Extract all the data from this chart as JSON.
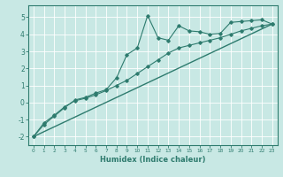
{
  "xlabel": "Humidex (Indice chaleur)",
  "xlim": [
    -0.5,
    23.5
  ],
  "ylim": [
    -2.5,
    5.7
  ],
  "xticks": [
    0,
    1,
    2,
    3,
    4,
    5,
    6,
    7,
    8,
    9,
    10,
    11,
    12,
    13,
    14,
    15,
    16,
    17,
    18,
    19,
    20,
    21,
    22,
    23
  ],
  "yticks": [
    -2,
    -1,
    0,
    1,
    2,
    3,
    4,
    5
  ],
  "bg_color": "#c8e8e4",
  "line_color": "#2e7b6e",
  "grid_color": "#ffffff",
  "series1_x": [
    0,
    1,
    2,
    3,
    4,
    5,
    6,
    7,
    8,
    9,
    10,
    11,
    12,
    13,
    14,
    15,
    16,
    17,
    18,
    19,
    20,
    21,
    22,
    23
  ],
  "series1_y": [
    -2.0,
    -1.3,
    -0.8,
    -0.3,
    0.15,
    0.3,
    0.55,
    0.75,
    1.45,
    2.8,
    3.2,
    5.1,
    3.8,
    3.65,
    4.5,
    4.2,
    4.15,
    4.0,
    4.05,
    4.7,
    4.75,
    4.8,
    4.85,
    4.6
  ],
  "series2_x": [
    0,
    1,
    2,
    3,
    4,
    5,
    6,
    7,
    8,
    9,
    10,
    11,
    12,
    13,
    14,
    15,
    16,
    17,
    18,
    19,
    20,
    21,
    22,
    23
  ],
  "series2_y": [
    -2.0,
    -1.2,
    -0.75,
    -0.25,
    0.1,
    0.25,
    0.45,
    0.7,
    1.0,
    1.3,
    1.7,
    2.1,
    2.5,
    2.9,
    3.2,
    3.35,
    3.5,
    3.65,
    3.8,
    4.0,
    4.2,
    4.35,
    4.5,
    4.6
  ],
  "series3_x": [
    0,
    23
  ],
  "series3_y": [
    -2.0,
    4.6
  ]
}
